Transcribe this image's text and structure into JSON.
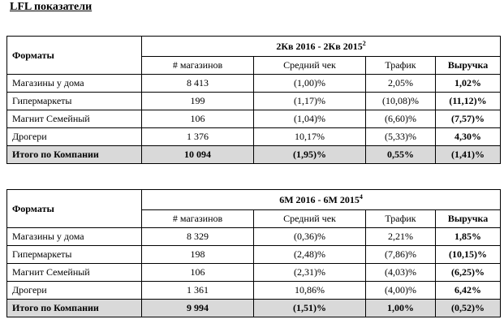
{
  "title": "LFL показатели",
  "tables": [
    {
      "formats_label": "Форматы",
      "period": "2Кв 2016 - 2Кв 2015",
      "period_note": "2",
      "columns": [
        "# магазинов",
        "Средний чек",
        "Трафик",
        "Выручка"
      ],
      "rows": [
        {
          "name": "Магазины у дома",
          "stores": "8 413",
          "avg_check": "(1,00)%",
          "traffic": "2,05%",
          "revenue": "1,02%"
        },
        {
          "name": "Гипермаркеты",
          "stores": "199",
          "avg_check": "(1,17)%",
          "traffic": "(10,08)%",
          "revenue": "(11,12)%"
        },
        {
          "name": "Магнит Семейный",
          "stores": "106",
          "avg_check": "(1,04)%",
          "traffic": "(6,60)%",
          "revenue": "(7,57)%"
        },
        {
          "name": "Дрогери",
          "stores": "1 376",
          "avg_check": "10,17%",
          "traffic": "(5,33)%",
          "revenue": "4,30%"
        }
      ],
      "total": {
        "name": "Итого по Компании",
        "stores": "10 094",
        "avg_check": "(1,95)%",
        "traffic": "0,55%",
        "revenue": "(1,41)%"
      }
    },
    {
      "formats_label": "Форматы",
      "period": "6М 2016 - 6М 2015",
      "period_note": "4",
      "columns": [
        "# магазинов",
        "Средний чек",
        "Трафик",
        "Выручка"
      ],
      "rows": [
        {
          "name": "Магазины у дома",
          "stores": "8 329",
          "avg_check": "(0,36)%",
          "traffic": "2,21%",
          "revenue": "1,85%"
        },
        {
          "name": "Гипермаркеты",
          "stores": "198",
          "avg_check": "(2,48)%",
          "traffic": "(7,86)%",
          "revenue": "(10,15)%"
        },
        {
          "name": "Магнит Семейный",
          "stores": "106",
          "avg_check": "(2,31)%",
          "traffic": "(4,03)%",
          "revenue": "(6,25)%"
        },
        {
          "name": "Дрогери",
          "stores": "1 361",
          "avg_check": "10,86%",
          "traffic": "(4,00)%",
          "revenue": "6,42%"
        }
      ],
      "total": {
        "name": "Итого по Компании",
        "stores": "9 994",
        "avg_check": "(1,51)%",
        "traffic": "1,00%",
        "revenue": "(0,52)%"
      }
    }
  ]
}
